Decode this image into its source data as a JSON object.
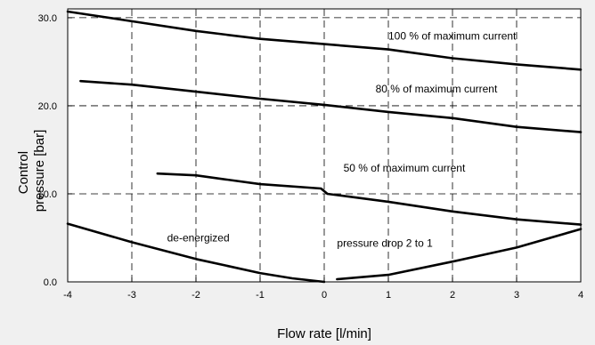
{
  "chart_data": {
    "type": "line",
    "xlabel": "Flow rate [l/min]",
    "ylabel": [
      "Control",
      "pressure [bar]"
    ],
    "xlim": [
      -4,
      4
    ],
    "ylim": [
      0,
      31
    ],
    "x_ticks": [
      -4,
      -3,
      -2,
      -1,
      0,
      1,
      2,
      3,
      4
    ],
    "x_tick_labels": [
      "-4",
      "-3",
      "-2",
      "-1",
      "0",
      "1",
      "2",
      "3",
      "4"
    ],
    "y_ticks": [
      0,
      10,
      20,
      30
    ],
    "y_tick_labels": [
      "0.0",
      "10.0",
      "20.0",
      "30.0"
    ],
    "grid": true,
    "line_color": "#000000",
    "background": "#f0f0f0",
    "plot_background": "#ffffff",
    "series": [
      {
        "id": "100",
        "x": [
          -4,
          -3,
          -2,
          -1,
          0,
          1,
          2,
          3,
          4
        ],
        "y": [
          30.7,
          29.6,
          28.5,
          27.6,
          27.0,
          26.4,
          25.4,
          24.7,
          24.1
        ]
      },
      {
        "id": "80",
        "x": [
          -3.8,
          -3,
          -2,
          -1,
          0,
          1,
          2,
          3,
          4
        ],
        "y": [
          22.8,
          22.4,
          21.6,
          20.8,
          20.1,
          19.3,
          18.6,
          17.6,
          17.0
        ]
      },
      {
        "id": "50",
        "x": [
          -2.6,
          -2,
          -1,
          -0.05,
          0.05,
          1,
          2,
          3,
          4
        ],
        "y": [
          12.3,
          12.1,
          11.1,
          10.6,
          10.0,
          9.1,
          8.0,
          7.1,
          6.5
        ]
      },
      {
        "id": "de-energized",
        "x": [
          -4,
          -3,
          -2,
          -1,
          -0.5,
          0
        ],
        "y": [
          6.6,
          4.5,
          2.6,
          1.0,
          0.4,
          0.0
        ]
      },
      {
        "id": "pressure-drop",
        "x": [
          0.2,
          1,
          2,
          3,
          4
        ],
        "y": [
          0.3,
          0.8,
          2.3,
          3.9,
          6.0
        ]
      }
    ],
    "annotations": [
      {
        "text": "100 % of maximum current",
        "x": 1.0,
        "y": 27.5
      },
      {
        "text": "80 % of maximum current",
        "x": 0.8,
        "y": 21.5
      },
      {
        "text": "50 % of maximum current",
        "x": 0.3,
        "y": 12.5
      },
      {
        "text": "de-energized",
        "x": -2.45,
        "y": 4.6
      },
      {
        "text": "pressure drop 2 to 1",
        "x": 0.2,
        "y": 4.0
      }
    ]
  }
}
